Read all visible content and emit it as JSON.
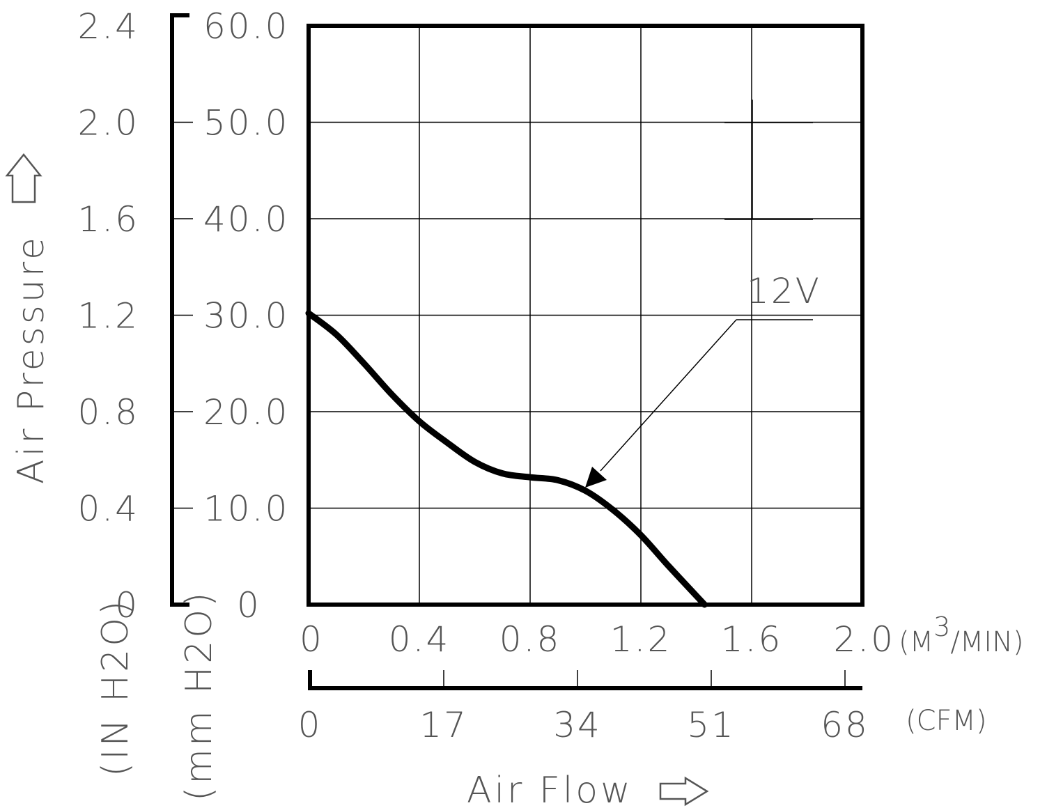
{
  "chart_data": {
    "type": "line",
    "x_unit_primary": "(M",
    "x_unit_primary_sup": "3",
    "x_unit_primary_tail": "/MIN)",
    "x_ticks_primary": [
      "0",
      "0.4",
      "0.8",
      "1.2",
      "1.6",
      "2.0"
    ],
    "x_unit_secondary": "(CFM)",
    "x_ticks_secondary": [
      "0",
      "17",
      "34",
      "51",
      "68"
    ],
    "xlabel": "Air Flow",
    "xlim": [
      0,
      2.0
    ],
    "y_unit_primary": "(mm H2O)",
    "y_ticks_primary": [
      "0",
      "10.0",
      "20.0",
      "30.0",
      "40.0",
      "50.0",
      "60.0"
    ],
    "y_unit_secondary": "(IN H2O)",
    "y_ticks_secondary": [
      "0",
      "0.4",
      "0.8",
      "1.2",
      "1.6",
      "2.0",
      "2.4"
    ],
    "ylabel": "Air Pressure",
    "ylim": [
      0,
      60
    ],
    "grid": true,
    "series": [
      {
        "name": "12V",
        "x": [
          0,
          0.1,
          0.2,
          0.3,
          0.4,
          0.5,
          0.6,
          0.7,
          0.8,
          0.9,
          1.0,
          1.1,
          1.2,
          1.3,
          1.43
        ],
        "y": [
          30.2,
          28.0,
          25.0,
          21.8,
          19.0,
          16.8,
          14.8,
          13.6,
          13.2,
          12.9,
          11.8,
          9.8,
          7.2,
          4.0,
          0
        ]
      }
    ]
  }
}
